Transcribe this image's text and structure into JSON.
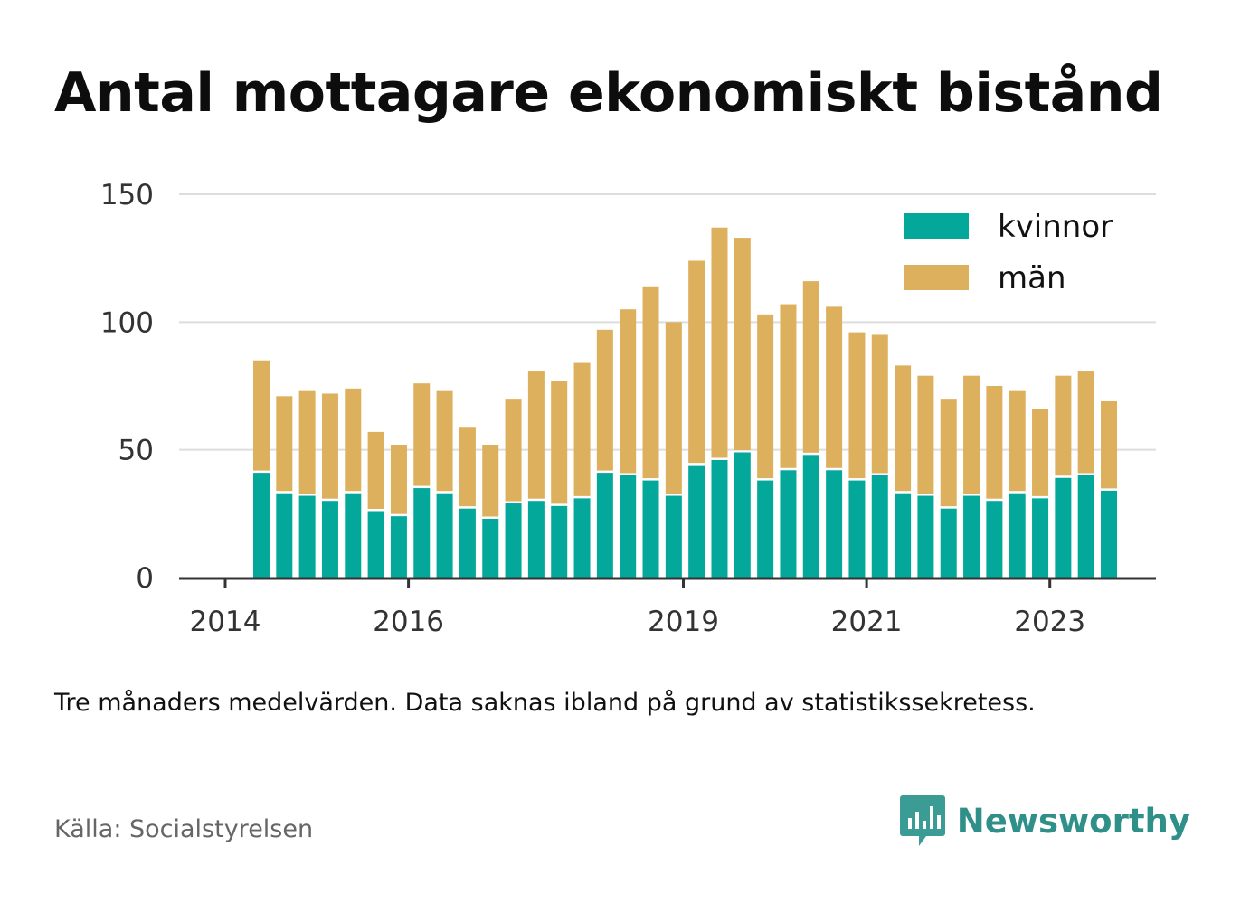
{
  "title": "Antal mottagare ekonomiskt bistånd",
  "note": "Tre månaders medelvärden. Data saknas ibland på grund av statistikssekretess.",
  "source": "Källa: Socialstyrelsen",
  "brand": {
    "name": "Newsworthy",
    "icon": "newsworthy-logo-icon"
  },
  "colors": {
    "kvinnor": "#04a89a",
    "man": "#ddb05d",
    "grid": "#dddddd",
    "axis": "#333333"
  },
  "chart_data": {
    "type": "bar",
    "stacked": true,
    "title": "Antal mottagare ekonomiskt bistånd",
    "xlabel": "",
    "ylabel": "",
    "ylim": [
      0,
      150
    ],
    "yticks": [
      "0",
      "50",
      "100",
      "150"
    ],
    "xticks": [
      "2014",
      "2016",
      "2019",
      "2021",
      "2023"
    ],
    "grid": true,
    "legend_position": "top-right",
    "categories": [
      "2014 Q2",
      "2014 Q3",
      "2014 Q4",
      "2015 Q1",
      "2015 Q2",
      "2015 Q3",
      "2015 Q4",
      "2016 Q1",
      "2016 Q2",
      "2016 Q3",
      "2016 Q4",
      "2017 Q1",
      "2017 Q2",
      "2017 Q3",
      "2017 Q4",
      "2018 Q1",
      "2018 Q2",
      "2018 Q3",
      "2018 Q4",
      "2019 Q1",
      "2019 Q2",
      "2019 Q3",
      "2019 Q4",
      "2020 Q1",
      "2020 Q2",
      "2020 Q3",
      "2020 Q4",
      "2021 Q1",
      "2021 Q2",
      "2021 Q3",
      "2021 Q4",
      "2022 Q1",
      "2022 Q2",
      "2022 Q3",
      "2022 Q4",
      "2023 Q1",
      "2023 Q2",
      "2023 Q3"
    ],
    "series": [
      {
        "name": "kvinnor",
        "values": [
          41,
          33,
          32,
          30,
          33,
          26,
          24,
          35,
          33,
          27,
          23,
          29,
          30,
          28,
          31,
          41,
          40,
          38,
          32,
          44,
          46,
          49,
          38,
          42,
          48,
          42,
          38,
          40,
          33,
          32,
          27,
          32,
          30,
          33,
          31,
          39,
          40,
          34
        ]
      },
      {
        "name": "män",
        "values": [
          44,
          38,
          41,
          42,
          41,
          31,
          28,
          41,
          40,
          32,
          29,
          41,
          51,
          49,
          53,
          56,
          65,
          76,
          68,
          80,
          91,
          84,
          65,
          65,
          68,
          64,
          58,
          55,
          50,
          47,
          43,
          47,
          45,
          40,
          35,
          40,
          41,
          35
        ]
      }
    ]
  }
}
